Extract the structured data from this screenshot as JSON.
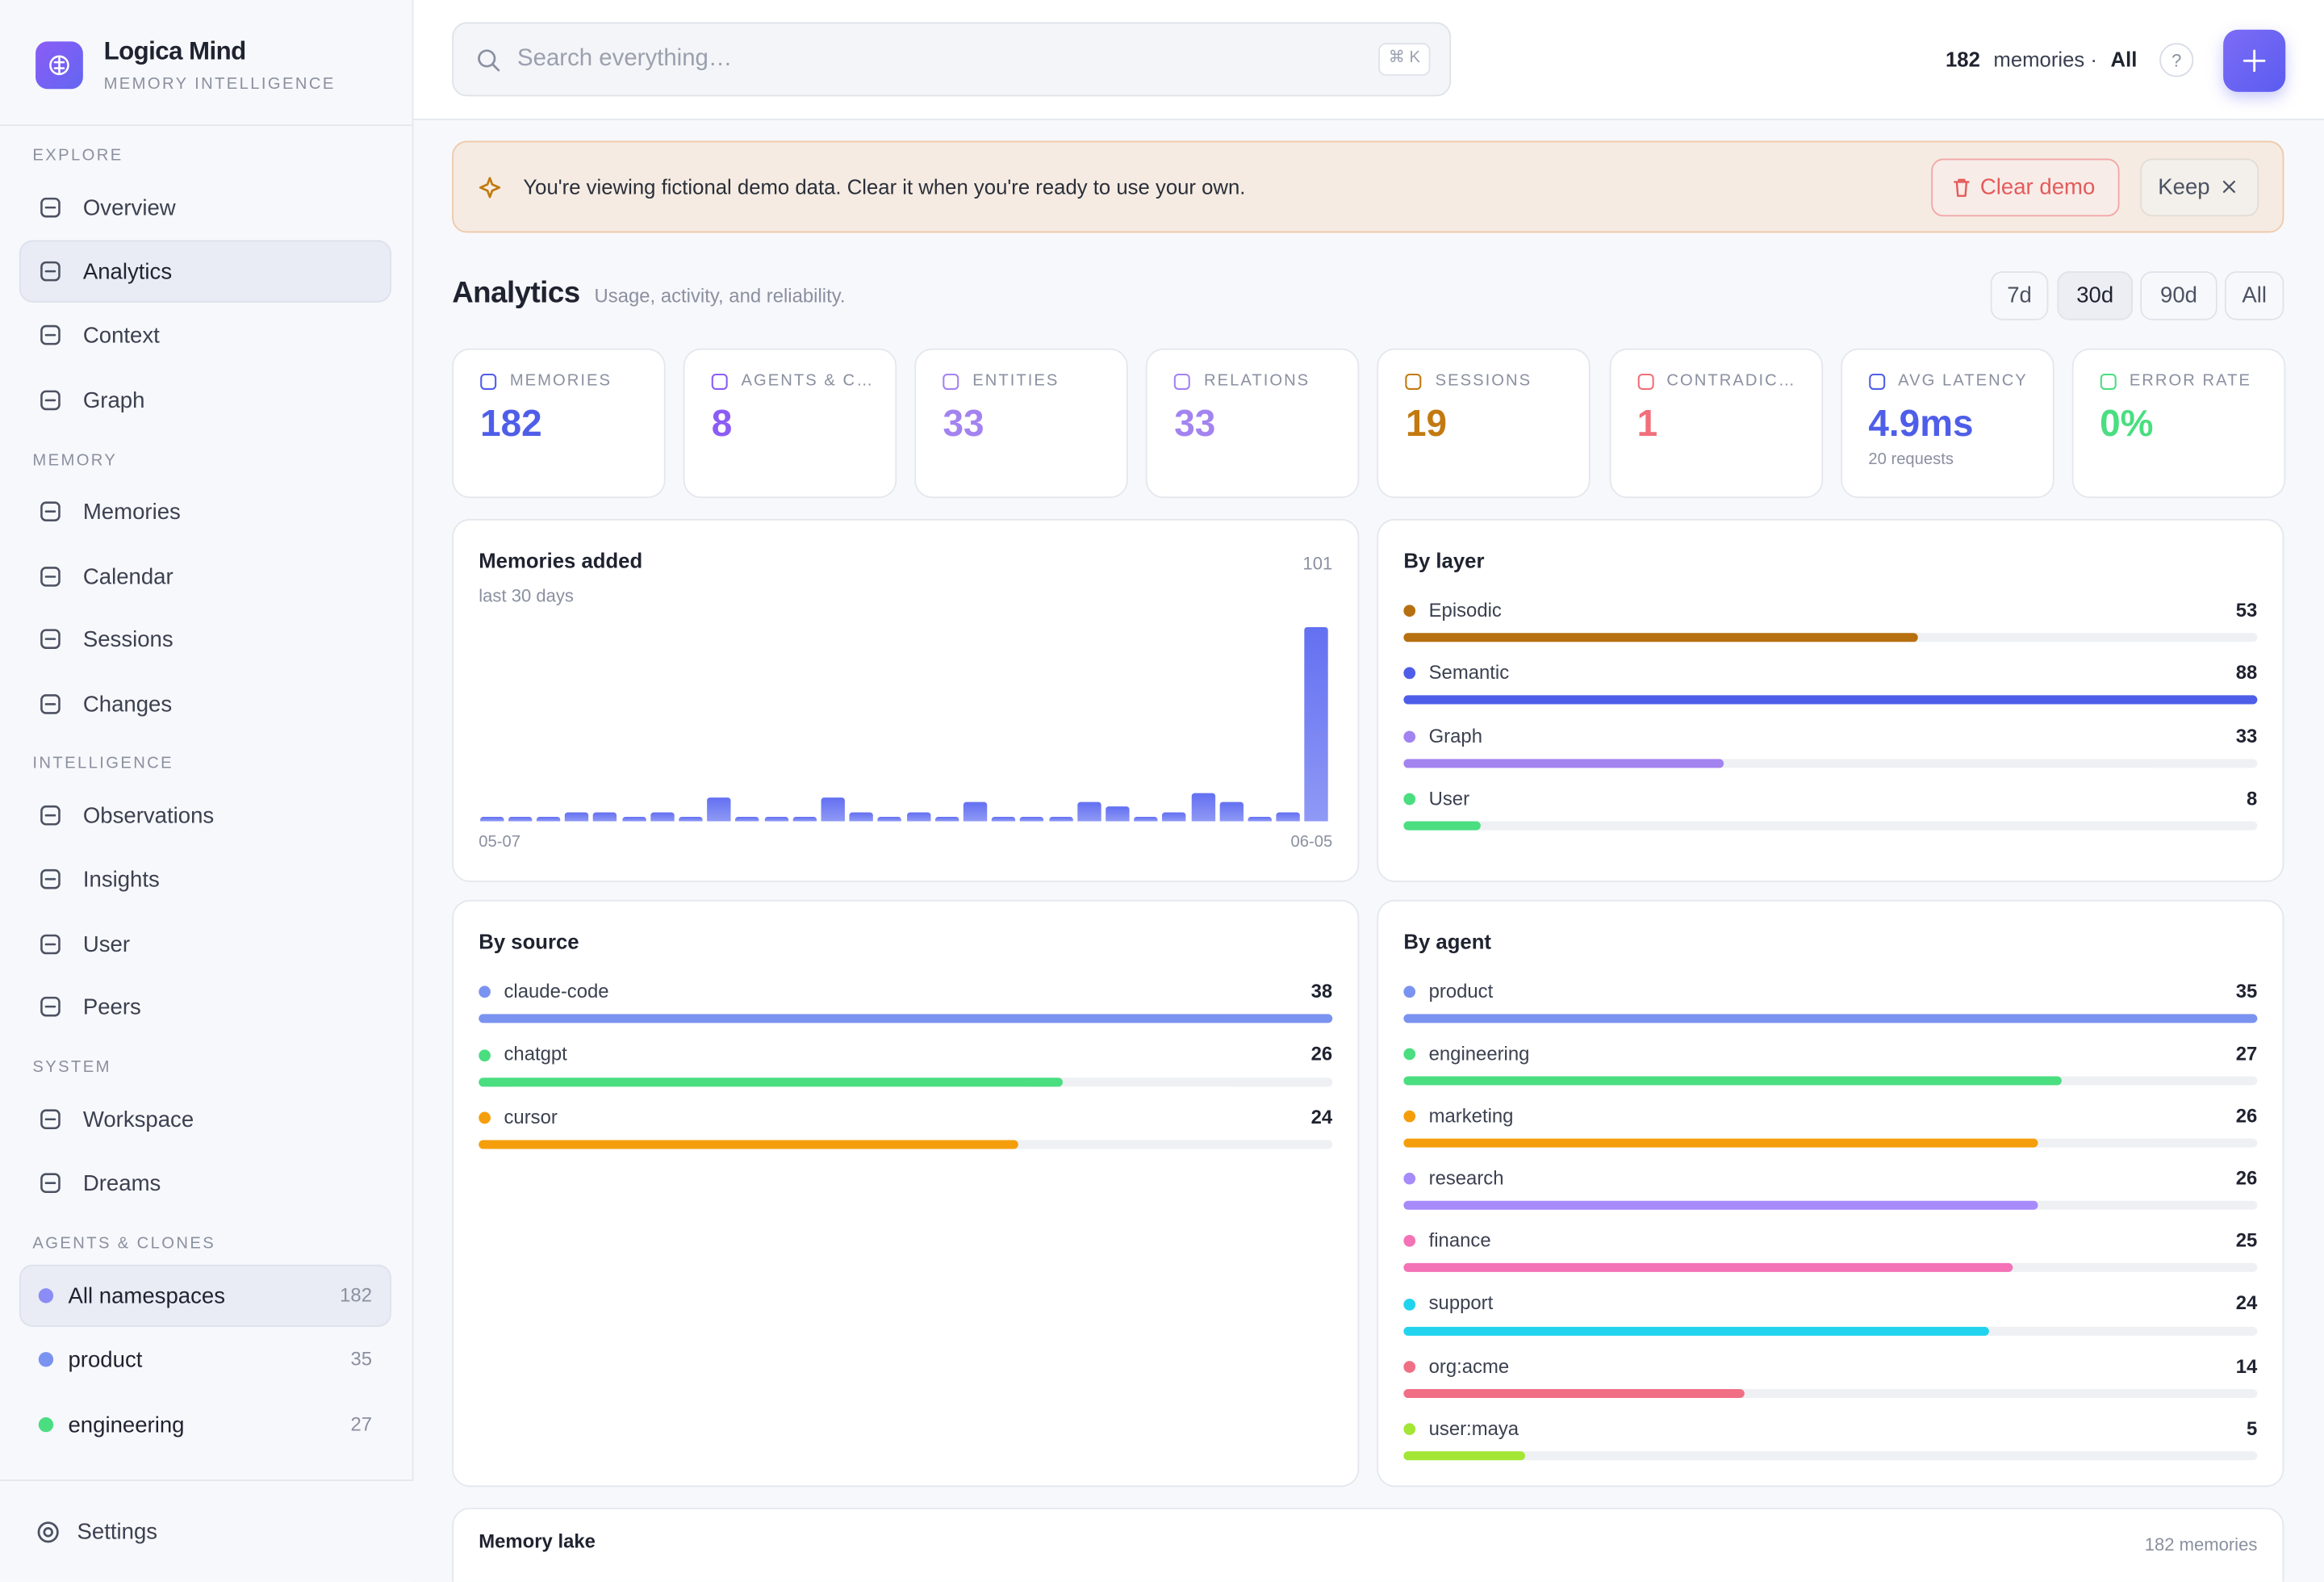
{
  "brand": {
    "name": "Logica Mind",
    "tagline": "MEMORY INTELLIGENCE"
  },
  "sidebar": {
    "sections": [
      {
        "title": "EXPLORE",
        "items": [
          {
            "label": "Overview"
          },
          {
            "label": "Analytics",
            "active": true
          },
          {
            "label": "Context"
          },
          {
            "label": "Graph"
          }
        ]
      },
      {
        "title": "MEMORY",
        "items": [
          {
            "label": "Memories"
          },
          {
            "label": "Calendar"
          },
          {
            "label": "Sessions"
          },
          {
            "label": "Changes"
          }
        ]
      },
      {
        "title": "INTELLIGENCE",
        "items": [
          {
            "label": "Observations"
          },
          {
            "label": "Insights"
          },
          {
            "label": "User"
          },
          {
            "label": "Peers"
          }
        ]
      },
      {
        "title": "SYSTEM",
        "items": [
          {
            "label": "Workspace"
          },
          {
            "label": "Dreams"
          }
        ]
      }
    ],
    "namespaces_title": "AGENTS & CLONES",
    "namespaces": [
      {
        "label": "All namespaces",
        "count": 182,
        "color": "#8b8cf6",
        "active": true
      },
      {
        "label": "product",
        "count": 35,
        "color": "#7b93f0"
      },
      {
        "label": "engineering",
        "count": 27,
        "color": "#4ade80"
      }
    ],
    "settings": "Settings"
  },
  "search": {
    "placeholder": "Search everything…",
    "shortcut": "⌘ K"
  },
  "topbar": {
    "count": 182,
    "unit": "memories ·",
    "scope": "All",
    "help": "?"
  },
  "banner": {
    "text": "You're viewing fictional demo data. Clear it when you're ready to use your own.",
    "clear": "Clear demo",
    "keep": "Keep"
  },
  "page": {
    "title": "Analytics",
    "subtitle": "Usage, activity, and reliability.",
    "ranges": [
      "7d",
      "30d",
      "90d",
      "All"
    ],
    "active_range": 1
  },
  "stats": [
    {
      "label": "MEMORIES",
      "value": 182,
      "color": "#4f5ee8"
    },
    {
      "label": "AGENTS & C…",
      "value": 8,
      "color": "#8b5cf6"
    },
    {
      "label": "ENTITIES",
      "value": 33,
      "color": "#a383f0"
    },
    {
      "label": "RELATIONS",
      "value": 33,
      "color": "#a383f0"
    },
    {
      "label": "SESSIONS",
      "value": 19,
      "color": "#c27a10"
    },
    {
      "label": "CONTRADIC…",
      "value": 1,
      "color": "#f06f7a"
    },
    {
      "label": "AVG LATENCY",
      "value": "4.9ms",
      "sub": "20 requests",
      "color": "#4f5ee8"
    },
    {
      "label": "ERROR RATE",
      "value": "0%",
      "color": "#4ade80"
    }
  ],
  "memories_added": {
    "title": "Memories added",
    "subtitle": "last 30 days",
    "total": 101,
    "values": [
      1,
      1,
      1,
      2,
      2,
      1,
      2,
      1,
      5,
      1,
      1,
      1,
      5,
      2,
      1,
      2,
      1,
      4,
      1,
      1,
      1,
      4,
      3,
      1,
      2,
      6,
      4,
      1,
      2,
      41
    ],
    "start": "05-07",
    "end": "06-05",
    "color": "#6370f1"
  },
  "by_layer": {
    "title": "By layer",
    "rows": [
      {
        "name": "Episodic",
        "value": 53,
        "color": "#b7700f"
      },
      {
        "name": "Semantic",
        "value": 88,
        "color": "#4f5ee8"
      },
      {
        "name": "Graph",
        "value": 33,
        "color": "#a383f0"
      },
      {
        "name": "User",
        "value": 8,
        "color": "#4ade80"
      }
    ]
  },
  "by_source": {
    "title": "By source",
    "rows": [
      {
        "name": "claude-code",
        "value": 38,
        "color": "#7b93f0"
      },
      {
        "name": "chatgpt",
        "value": 26,
        "color": "#4ade80"
      },
      {
        "name": "cursor",
        "value": 24,
        "color": "#f59e0b"
      }
    ]
  },
  "by_agent": {
    "title": "By agent",
    "rows": [
      {
        "name": "product",
        "value": 35,
        "color": "#7b93f0"
      },
      {
        "name": "engineering",
        "value": 27,
        "color": "#4ade80"
      },
      {
        "name": "marketing",
        "value": 26,
        "color": "#f59e0b"
      },
      {
        "name": "research",
        "value": 26,
        "color": "#a78bfa"
      },
      {
        "name": "finance",
        "value": 25,
        "color": "#f472b6"
      },
      {
        "name": "support",
        "value": 24,
        "color": "#22d3ee"
      },
      {
        "name": "org:acme",
        "value": 14,
        "color": "#f06f85"
      },
      {
        "name": "user:maya",
        "value": 5,
        "color": "#a3e635"
      }
    ]
  },
  "memory_lake": {
    "title": "Memory lake",
    "count": "182 memories"
  }
}
